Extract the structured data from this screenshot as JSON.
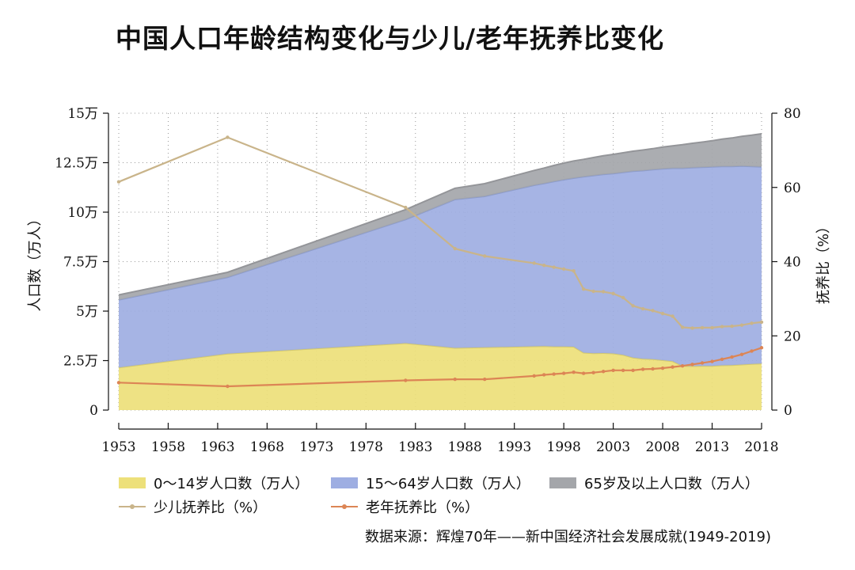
{
  "title": "中国人口年龄结构变化与少儿/老年抚养比变化",
  "source": "数据来源：辉煌70年——新中国经济社会发展成就(1949-2019)",
  "chart_data": {
    "type": "area",
    "x_ticks": [
      "1953",
      "1958",
      "1963",
      "1968",
      "1973",
      "1978",
      "1983",
      "1988",
      "1993",
      "1998",
      "2003",
      "2008",
      "2013",
      "2018"
    ],
    "xlim": [
      1953,
      2018
    ],
    "y_left": {
      "label": "人口数（万人）",
      "ylim": [
        0,
        150000
      ],
      "ticks": [
        {
          "v": 0,
          "t": "0"
        },
        {
          "v": 25000,
          "t": "2.5万"
        },
        {
          "v": 50000,
          "t": "5万"
        },
        {
          "v": 75000,
          "t": "7.5万"
        },
        {
          "v": 100000,
          "t": "10万"
        },
        {
          "v": 125000,
          "t": "12.5万"
        },
        {
          "v": 150000,
          "t": "15万"
        }
      ]
    },
    "y_right": {
      "label": "抚养比（%）",
      "ylim": [
        0,
        80
      ],
      "ticks": [
        {
          "v": 0,
          "t": "0"
        },
        {
          "v": 20,
          "t": "20"
        },
        {
          "v": 40,
          "t": "40"
        },
        {
          "v": 60,
          "t": "60"
        },
        {
          "v": 80,
          "t": "80"
        }
      ]
    },
    "grid": true,
    "stacked_series": [
      {
        "name": "0～14岁人口数（万人）",
        "color": "#ede07a",
        "x": [
          1953,
          1964,
          1982,
          1987,
          1990,
          1995,
          1996,
          1997,
          1998,
          1999,
          2000,
          2001,
          2002,
          2003,
          2004,
          2005,
          2006,
          2007,
          2008,
          2009,
          2010,
          2011,
          2012,
          2013,
          2014,
          2015,
          2016,
          2017,
          2018
        ],
        "values": [
          21500,
          28500,
          33800,
          31400,
          31700,
          32200,
          32300,
          32100,
          32100,
          32000,
          29000,
          28700,
          28800,
          28600,
          27900,
          26500,
          25900,
          25700,
          25200,
          24700,
          22300,
          22200,
          22300,
          22300,
          22600,
          22700,
          23000,
          23300,
          23500
        ]
      },
      {
        "name": "15～64岁人口数（万人）",
        "color": "#9eaee2",
        "x": [
          1953,
          1964,
          1982,
          1987,
          1990,
          1995,
          1996,
          1997,
          1998,
          1999,
          2000,
          2001,
          2002,
          2003,
          2004,
          2005,
          2006,
          2007,
          2008,
          2009,
          2010,
          2011,
          2012,
          2013,
          2014,
          2015,
          2016,
          2017,
          2018
        ],
        "values": [
          34200,
          38600,
          62500,
          75000,
          76300,
          81400,
          82200,
          83400,
          84300,
          85200,
          88900,
          89800,
          90300,
          90900,
          92200,
          94200,
          95100,
          95800,
          96700,
          97500,
          99900,
          100300,
          100400,
          100600,
          100500,
          100400,
          100300,
          99800,
          99400
        ]
      },
      {
        "name": "65岁及以上人口数（万人）",
        "color": "#a4a6aa",
        "x": [
          1953,
          1964,
          1982,
          1987,
          1990,
          1995,
          1996,
          1997,
          1998,
          1999,
          2000,
          2001,
          2002,
          2003,
          2004,
          2005,
          2006,
          2007,
          2008,
          2009,
          2010,
          2011,
          2012,
          2013,
          2014,
          2015,
          2016,
          2017,
          2018
        ],
        "values": [
          2500,
          2500,
          5000,
          5700,
          6400,
          7500,
          7800,
          8100,
          8400,
          8700,
          8800,
          9100,
          9400,
          9700,
          9900,
          10100,
          10400,
          10600,
          11000,
          11300,
          11900,
          12300,
          12700,
          13200,
          13800,
          14400,
          15000,
          15800,
          16700
        ]
      }
    ],
    "lines": [
      {
        "name": "少儿抚养比（%）",
        "color": "#c9b48a",
        "x": [
          1953,
          1964,
          1982,
          1987,
          1990,
          1995,
          1996,
          1997,
          1998,
          1999,
          2000,
          2001,
          2002,
          2003,
          2004,
          2005,
          2006,
          2007,
          2008,
          2009,
          2010,
          2011,
          2012,
          2013,
          2014,
          2015,
          2016,
          2017,
          2018
        ],
        "values": [
          61.5,
          73.5,
          54.6,
          43.5,
          41.5,
          39.6,
          39.0,
          38.5,
          38.0,
          37.5,
          32.6,
          32.0,
          31.9,
          31.4,
          30.3,
          28.1,
          27.3,
          26.8,
          26.0,
          25.3,
          22.3,
          22.1,
          22.2,
          22.2,
          22.5,
          22.6,
          22.9,
          23.4,
          23.7
        ]
      },
      {
        "name": "老年抚养比（%）",
        "color": "#dc8555",
        "x": [
          1953,
          1964,
          1982,
          1987,
          1990,
          1995,
          1996,
          1997,
          1998,
          1999,
          2000,
          2001,
          2002,
          2003,
          2004,
          2005,
          2006,
          2007,
          2008,
          2009,
          2010,
          2011,
          2012,
          2013,
          2014,
          2015,
          2016,
          2017,
          2018
        ],
        "values": [
          7.4,
          6.4,
          8.0,
          8.3,
          8.3,
          9.2,
          9.5,
          9.7,
          9.9,
          10.2,
          9.9,
          10.1,
          10.4,
          10.7,
          10.7,
          10.7,
          11.0,
          11.1,
          11.3,
          11.6,
          11.9,
          12.3,
          12.7,
          13.1,
          13.7,
          14.3,
          15.0,
          15.9,
          16.8
        ]
      }
    ]
  }
}
